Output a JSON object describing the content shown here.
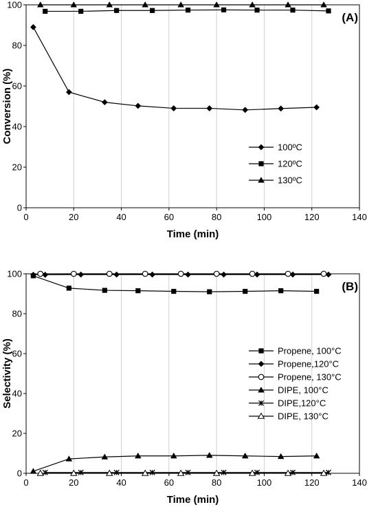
{
  "chart_data": [
    {
      "type": "line",
      "panel_label": "(A)",
      "xlabel": "Time (min)",
      "ylabel": "Conversion (%)",
      "xlim": [
        0,
        140
      ],
      "ylim": [
        0,
        100
      ],
      "xticks": [
        0,
        20,
        40,
        60,
        80,
        100,
        120,
        140
      ],
      "yticks": [
        0,
        20,
        40,
        60,
        80,
        100
      ],
      "grid": "vertical",
      "legend_position": "right-middle",
      "series": [
        {
          "name": "100ºC",
          "marker": "diamond",
          "x": [
            3,
            18,
            33,
            47,
            62,
            77,
            92,
            107,
            122
          ],
          "y": [
            89,
            57,
            52,
            50.2,
            49,
            49,
            48.2,
            48.9,
            49.5
          ]
        },
        {
          "name": "120ºC",
          "marker": "square",
          "x": [
            8,
            23,
            38,
            53,
            68,
            83,
            97,
            112,
            127
          ],
          "y": [
            96.8,
            96.8,
            97.2,
            97.2,
            97.4,
            97.5,
            97.4,
            97.4,
            97
          ]
        },
        {
          "name": "130ºC",
          "marker": "triangle",
          "x": [
            6,
            20,
            35,
            50,
            65,
            80,
            95,
            110,
            125
          ],
          "y": [
            100,
            100,
            100,
            100,
            100,
            100,
            100,
            100,
            100
          ]
        }
      ]
    },
    {
      "type": "line",
      "panel_label": "(B)",
      "xlabel": "Time (min)",
      "ylabel": "Selectivity (%)",
      "xlim": [
        0,
        140
      ],
      "ylim": [
        0,
        100
      ],
      "xticks": [
        0,
        20,
        40,
        60,
        80,
        100,
        120,
        140
      ],
      "yticks": [
        0,
        20,
        40,
        60,
        80,
        100
      ],
      "grid": "vertical",
      "legend_position": "right-middle",
      "series": [
        {
          "name": "Propene, 100°C",
          "marker": "square",
          "x": [
            3,
            18,
            33,
            47,
            62,
            77,
            92,
            107,
            122
          ],
          "y": [
            99,
            92.8,
            91.7,
            91.5,
            91.2,
            91,
            91.2,
            91.5,
            91.2
          ]
        },
        {
          "name": "Propene,120°C",
          "marker": "diamond",
          "x": [
            3,
            8,
            23,
            38,
            53,
            68,
            83,
            97,
            112,
            127
          ],
          "y": [
            99.5,
            99.5,
            99.6,
            99.6,
            99.6,
            99.6,
            99.6,
            99.6,
            99.6,
            99.6
          ]
        },
        {
          "name": "Propene, 130°C",
          "marker": "circle",
          "x": [
            6,
            20,
            35,
            50,
            65,
            80,
            95,
            110,
            125
          ],
          "y": [
            100,
            100,
            100,
            100,
            100,
            100,
            100,
            100,
            100
          ]
        },
        {
          "name": "DIPE, 100°C",
          "marker": "triangle",
          "x": [
            3,
            18,
            33,
            47,
            62,
            77,
            92,
            107,
            122
          ],
          "y": [
            1,
            7.2,
            8.2,
            8.7,
            8.7,
            9,
            8.7,
            8.4,
            8.7
          ]
        },
        {
          "name": "DIPE,120°C",
          "marker": "star",
          "x": [
            8,
            23,
            38,
            53,
            68,
            83,
            97,
            112,
            127
          ],
          "y": [
            0.4,
            0.4,
            0.4,
            0.4,
            0.4,
            0.4,
            0.4,
            0.4,
            0.4
          ]
        },
        {
          "name": "DIPE, 130°C",
          "marker": "triangle-open",
          "x": [
            6,
            20,
            35,
            50,
            65,
            80,
            95,
            110,
            125
          ],
          "y": [
            0,
            0,
            0,
            0,
            0,
            0,
            0,
            0,
            0
          ]
        }
      ]
    }
  ]
}
